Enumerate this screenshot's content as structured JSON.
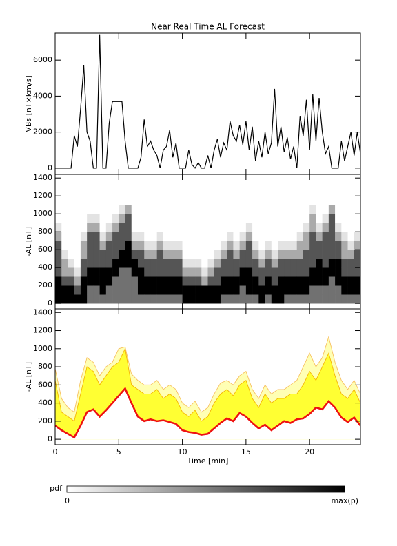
{
  "chart_data": [
    {
      "type": "line",
      "title": "Near Real Time AL Forecast",
      "ylabel": "VBs [nT×km/s]",
      "color": "#000000",
      "xlim": [
        0,
        24
      ],
      "xticks": [
        0,
        5,
        10,
        15,
        20
      ],
      "ylim": [
        -350,
        7500
      ],
      "yticks": [
        0,
        2000,
        4000,
        6000
      ],
      "x": [
        0,
        0.25,
        0.5,
        0.75,
        1,
        1.25,
        1.5,
        1.75,
        2,
        2.25,
        2.5,
        2.75,
        3,
        3.25,
        3.5,
        3.75,
        4,
        4.25,
        4.5,
        4.75,
        5,
        5.25,
        5.5,
        5.75,
        6,
        6.25,
        6.5,
        6.75,
        7,
        7.25,
        7.5,
        7.75,
        8,
        8.25,
        8.5,
        8.75,
        9,
        9.25,
        9.5,
        9.75,
        10,
        10.25,
        10.5,
        10.75,
        11,
        11.25,
        11.5,
        11.75,
        12,
        12.25,
        12.5,
        12.75,
        13,
        13.25,
        13.5,
        13.75,
        14,
        14.25,
        14.5,
        14.75,
        15,
        15.25,
        15.5,
        15.75,
        16,
        16.25,
        16.5,
        16.75,
        17,
        17.25,
        17.5,
        17.75,
        18,
        18.25,
        18.5,
        18.75,
        19,
        19.25,
        19.5,
        19.75,
        20,
        20.25,
        20.5,
        20.75,
        21,
        21.25,
        21.5,
        21.75,
        22,
        22.25,
        22.5,
        22.75,
        23,
        23.25,
        23.5,
        23.75,
        24
      ],
      "values": [
        0,
        0,
        0,
        0,
        0,
        0,
        1800,
        1200,
        3300,
        5700,
        2000,
        1500,
        0,
        0,
        7400,
        0,
        0,
        2500,
        3700,
        3700,
        3700,
        3700,
        1500,
        0,
        0,
        0,
        0,
        600,
        2700,
        1200,
        1500,
        1000,
        700,
        0,
        1000,
        1200,
        2100,
        600,
        1400,
        0,
        0,
        0,
        1000,
        200,
        0,
        300,
        0,
        0,
        700,
        0,
        1000,
        1600,
        600,
        1400,
        1000,
        2600,
        1800,
        1500,
        2400,
        1300,
        2600,
        1000,
        2300,
        400,
        1500,
        600,
        2000,
        800,
        1400,
        4400,
        1200,
        2300,
        900,
        1700,
        500,
        1200,
        0,
        2900,
        1800,
        3800,
        1000,
        4100,
        1500,
        3900,
        2000,
        800,
        1200,
        0,
        0,
        0,
        1500,
        400,
        1200,
        2000,
        700,
        2000,
        800
      ]
    },
    {
      "type": "heatmap",
      "ylabel": "-AL [nT]",
      "colors": [
        "#ffffff",
        "#000000"
      ],
      "xlim": [
        0,
        24
      ],
      "xticks": [
        0,
        5,
        10,
        15,
        20
      ],
      "ylim": [
        -60,
        1440
      ],
      "yticks": [
        0,
        200,
        400,
        600,
        800,
        1000,
        1200,
        1400
      ],
      "xbins": [
        0,
        0.5,
        1,
        1.5,
        2,
        2.5,
        3,
        3.5,
        4,
        4.5,
        5,
        5.5,
        6,
        6.5,
        7,
        7.5,
        8,
        8.5,
        9,
        9.5,
        10,
        10.5,
        11,
        11.5,
        12,
        12.5,
        13,
        13.5,
        14,
        14.5,
        15,
        15.5,
        16,
        16.5,
        17,
        17.5,
        18,
        18.5,
        19,
        19.5,
        20,
        20.5,
        21,
        21.5,
        22,
        22.5,
        23,
        23.5,
        24
      ],
      "ybins": [
        0,
        100,
        200,
        300,
        400,
        500,
        600,
        700,
        800,
        900,
        1000,
        1100
      ],
      "z": [
        [
          9,
          9,
          9,
          6,
          6,
          6,
          6,
          3,
          1,
          0,
          0
        ],
        [
          9,
          9,
          6,
          3,
          3,
          1,
          0,
          0,
          0,
          0,
          0
        ],
        [
          9,
          9,
          6,
          3,
          1,
          0,
          0,
          0,
          0,
          0,
          0
        ],
        [
          9,
          6,
          3,
          1,
          0,
          0,
          0,
          0,
          0,
          0,
          0
        ],
        [
          9,
          9,
          9,
          6,
          6,
          3,
          3,
          1,
          0,
          0,
          0
        ],
        [
          5,
          5,
          9,
          9,
          6,
          6,
          6,
          6,
          3,
          1,
          0
        ],
        [
          5,
          5,
          9,
          9,
          6,
          6,
          6,
          6,
          3,
          1,
          0
        ],
        [
          5,
          9,
          9,
          9,
          6,
          6,
          3,
          1,
          0,
          0,
          0
        ],
        [
          5,
          5,
          9,
          9,
          6,
          6,
          6,
          3,
          1,
          0,
          0
        ],
        [
          5,
          5,
          5,
          9,
          9,
          6,
          6,
          6,
          3,
          1,
          0
        ],
        [
          5,
          5,
          5,
          5,
          9,
          9,
          6,
          6,
          6,
          3,
          1
        ],
        [
          5,
          5,
          5,
          5,
          9,
          9,
          9,
          6,
          6,
          6,
          3
        ],
        [
          5,
          5,
          5,
          9,
          9,
          6,
          3,
          1,
          0,
          0,
          0
        ],
        [
          5,
          9,
          9,
          9,
          6,
          6,
          3,
          1,
          0,
          0,
          0
        ],
        [
          5,
          9,
          9,
          6,
          6,
          3,
          1,
          0,
          0,
          0,
          0
        ],
        [
          5,
          9,
          9,
          6,
          6,
          3,
          1,
          0,
          0,
          0,
          0
        ],
        [
          5,
          9,
          9,
          6,
          6,
          6,
          3,
          1,
          0,
          0,
          0
        ],
        [
          5,
          9,
          9,
          6,
          6,
          3,
          1,
          0,
          0,
          0,
          0
        ],
        [
          5,
          9,
          9,
          6,
          6,
          3,
          1,
          0,
          0,
          0,
          0
        ],
        [
          5,
          9,
          9,
          6,
          6,
          3,
          1,
          0,
          0,
          0,
          0
        ],
        [
          9,
          9,
          6,
          3,
          1,
          0,
          0,
          0,
          0,
          0,
          0
        ],
        [
          9,
          9,
          6,
          3,
          1,
          0,
          0,
          0,
          0,
          0,
          0
        ],
        [
          9,
          9,
          6,
          3,
          1,
          0,
          0,
          0,
          0,
          0,
          0
        ],
        [
          9,
          9,
          3,
          1,
          0,
          0,
          0,
          0,
          0,
          0,
          0
        ],
        [
          9,
          9,
          6,
          3,
          1,
          0,
          0,
          0,
          0,
          0,
          0
        ],
        [
          9,
          9,
          6,
          6,
          3,
          1,
          0,
          0,
          0,
          0,
          0
        ],
        [
          5,
          9,
          9,
          6,
          6,
          3,
          1,
          0,
          0,
          0,
          0
        ],
        [
          5,
          9,
          9,
          6,
          6,
          6,
          3,
          1,
          0,
          0,
          0
        ],
        [
          5,
          9,
          9,
          6,
          6,
          3,
          1,
          0,
          0,
          0,
          0
        ],
        [
          5,
          5,
          9,
          9,
          6,
          6,
          3,
          1,
          0,
          0,
          0
        ],
        [
          5,
          9,
          9,
          9,
          6,
          6,
          6,
          3,
          1,
          0,
          0
        ],
        [
          5,
          9,
          9,
          6,
          6,
          3,
          1,
          0,
          0,
          0,
          0
        ],
        [
          9,
          9,
          6,
          6,
          3,
          1,
          0,
          0,
          0,
          0,
          0
        ],
        [
          5,
          9,
          9,
          6,
          6,
          3,
          1,
          0,
          0,
          0,
          0
        ],
        [
          9,
          9,
          6,
          6,
          3,
          1,
          0,
          0,
          0,
          0,
          0
        ],
        [
          9,
          9,
          9,
          6,
          6,
          3,
          1,
          0,
          0,
          0,
          0
        ],
        [
          5,
          9,
          9,
          6,
          6,
          3,
          1,
          0,
          0,
          0,
          0
        ],
        [
          5,
          9,
          9,
          6,
          6,
          3,
          1,
          0,
          0,
          0,
          0
        ],
        [
          5,
          9,
          9,
          6,
          6,
          3,
          3,
          1,
          0,
          0,
          0
        ],
        [
          5,
          9,
          9,
          6,
          6,
          6,
          3,
          3,
          1,
          0,
          0
        ],
        [
          5,
          5,
          9,
          9,
          6,
          6,
          6,
          6,
          3,
          3,
          1
        ],
        [
          5,
          5,
          9,
          9,
          9,
          6,
          6,
          3,
          1,
          0,
          0
        ],
        [
          5,
          5,
          9,
          9,
          6,
          6,
          6,
          6,
          3,
          1,
          0
        ],
        [
          5,
          5,
          5,
          9,
          9,
          6,
          6,
          6,
          6,
          6,
          3
        ],
        [
          5,
          5,
          9,
          9,
          9,
          6,
          6,
          3,
          1,
          0,
          0
        ],
        [
          5,
          9,
          9,
          6,
          6,
          3,
          3,
          1,
          0,
          0,
          0
        ],
        [
          5,
          9,
          9,
          6,
          6,
          3,
          1,
          0,
          0,
          0,
          0
        ],
        [
          5,
          9,
          9,
          6,
          6,
          6,
          3,
          1,
          0,
          0,
          0
        ]
      ]
    },
    {
      "type": "band",
      "ylabel": "-AL [nT]",
      "xlabel": "Time [min]",
      "xlim": [
        0,
        24
      ],
      "xticks": [
        0,
        5,
        10,
        15,
        20
      ],
      "ylim": [
        -60,
        1440
      ],
      "yticks": [
        0,
        200,
        400,
        600,
        800,
        1000,
        1200,
        1400
      ],
      "x": [
        0,
        0.5,
        1,
        1.5,
        2,
        2.5,
        3,
        3.5,
        4,
        4.5,
        5,
        5.5,
        6,
        6.5,
        7,
        7.5,
        8,
        8.5,
        9,
        9.5,
        10,
        10.5,
        11,
        11.5,
        12,
        12.5,
        13,
        13.5,
        14,
        14.5,
        15,
        15.5,
        16,
        16.5,
        17,
        17.5,
        18,
        18.5,
        19,
        19.5,
        20,
        20.5,
        21,
        21.5,
        22,
        22.5,
        23,
        23.5,
        24
      ],
      "series": [
        {
          "color": "#ee1111",
          "fill": "#ffffff",
          "values": [
            150,
            100,
            60,
            20,
            150,
            300,
            330,
            250,
            320,
            400,
            480,
            560,
            400,
            250,
            200,
            220,
            200,
            210,
            190,
            170,
            100,
            80,
            70,
            50,
            60,
            120,
            180,
            230,
            200,
            290,
            250,
            180,
            120,
            160,
            100,
            150,
            200,
            180,
            220,
            230,
            280,
            350,
            330,
            420,
            350,
            240,
            190,
            240,
            150
          ]
        },
        {
          "color": "#f5b400",
          "fill": "#ffff33",
          "values": [
            650,
            300,
            250,
            200,
            500,
            800,
            750,
            600,
            700,
            800,
            850,
            1000,
            600,
            550,
            500,
            500,
            550,
            450,
            500,
            450,
            300,
            250,
            320,
            200,
            250,
            400,
            500,
            550,
            480,
            600,
            650,
            450,
            350,
            500,
            400,
            450,
            450,
            500,
            500,
            600,
            750,
            650,
            800,
            950,
            700,
            500,
            450,
            550,
            400
          ]
        },
        {
          "color": "#f7c060",
          "fill": "#ffffb4",
          "values": [
            780,
            450,
            350,
            300,
            650,
            900,
            850,
            700,
            800,
            850,
            1000,
            1020,
            720,
            650,
            600,
            600,
            650,
            550,
            600,
            550,
            400,
            350,
            420,
            300,
            350,
            500,
            620,
            650,
            600,
            700,
            750,
            550,
            450,
            600,
            500,
            550,
            550,
            600,
            650,
            800,
            950,
            800,
            900,
            1130,
            850,
            650,
            550,
            650,
            500
          ]
        }
      ]
    }
  ],
  "colorbar": {
    "label": "pdf",
    "min_label": "0",
    "max_label": "max(p)"
  }
}
